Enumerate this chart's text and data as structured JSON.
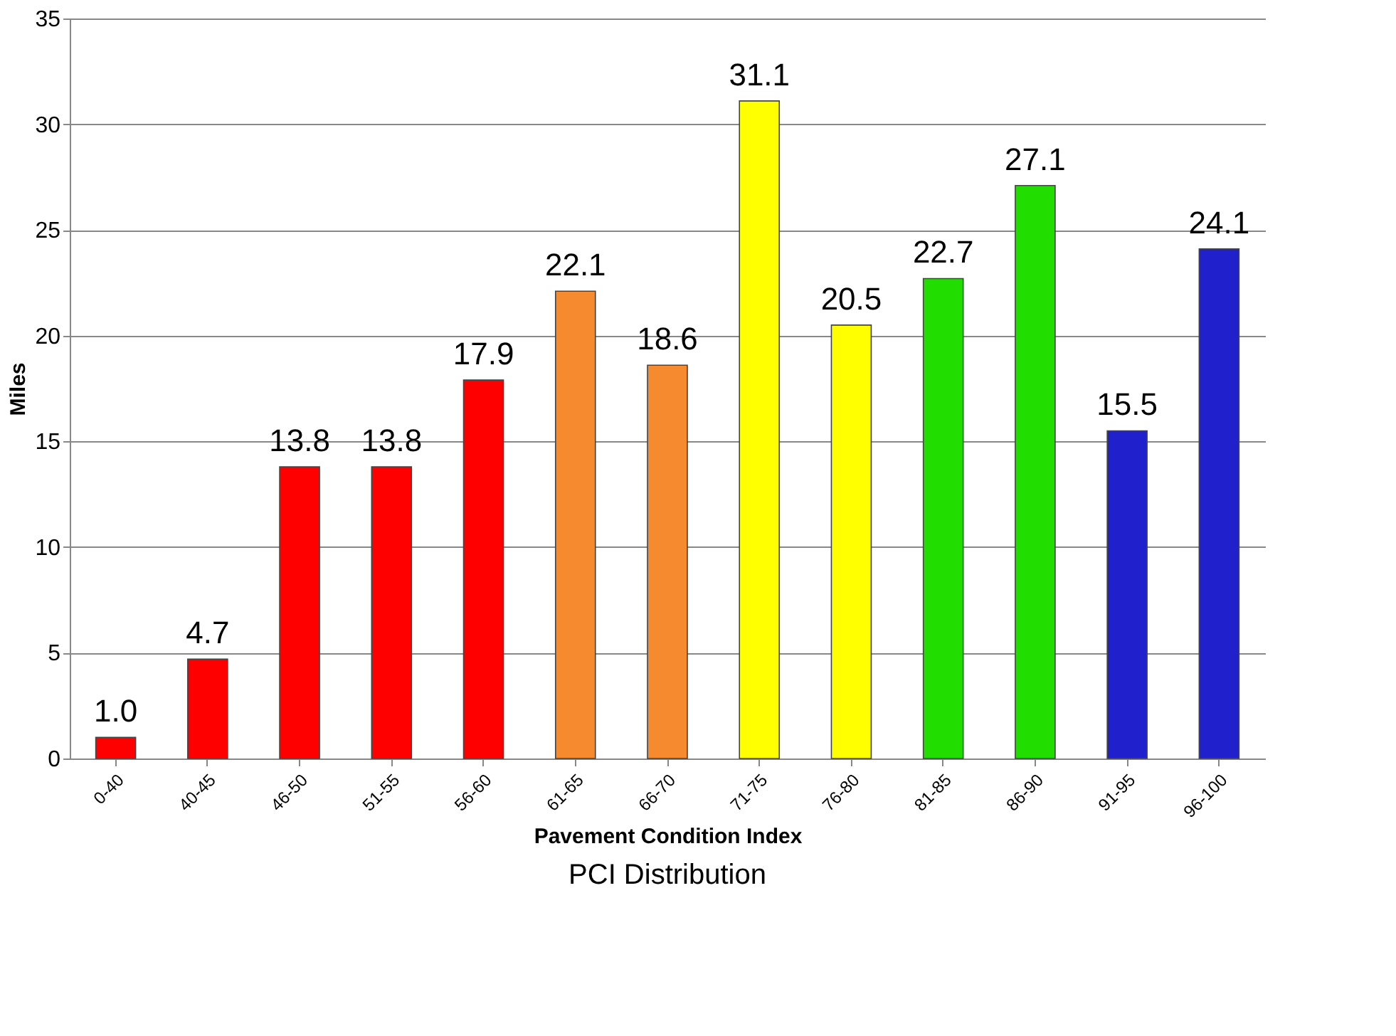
{
  "chart_data": {
    "type": "bar",
    "title": "PCI Distribution",
    "xlabel": "Pavement Condition Index",
    "ylabel": "Miles",
    "categories": [
      "0-40",
      "40-45",
      "46-50",
      "51-55",
      "56-60",
      "61-65",
      "66-70",
      "71-75",
      "76-80",
      "81-85",
      "86-90",
      "91-95",
      "96-100"
    ],
    "values": [
      1.0,
      4.7,
      13.8,
      13.8,
      17.9,
      22.1,
      18.6,
      31.1,
      20.5,
      22.7,
      27.1,
      15.5,
      24.1
    ],
    "value_labels": [
      "1.0",
      "4.7",
      "13.8",
      "13.8",
      "17.9",
      "22.1",
      "18.6",
      "31.1",
      "20.5",
      "22.7",
      "27.1",
      "15.5",
      "24.1"
    ],
    "colors": [
      "#ff0000",
      "#ff0000",
      "#ff0000",
      "#ff0000",
      "#ff0000",
      "#f68a2e",
      "#f68a2e",
      "#ffff00",
      "#ffff00",
      "#22dd00",
      "#22dd00",
      "#2020cc",
      "#2020cc"
    ],
    "ylim": [
      0,
      35
    ],
    "yticks": [
      0,
      5,
      10,
      15,
      20,
      25,
      30,
      35
    ],
    "grid": "y"
  }
}
